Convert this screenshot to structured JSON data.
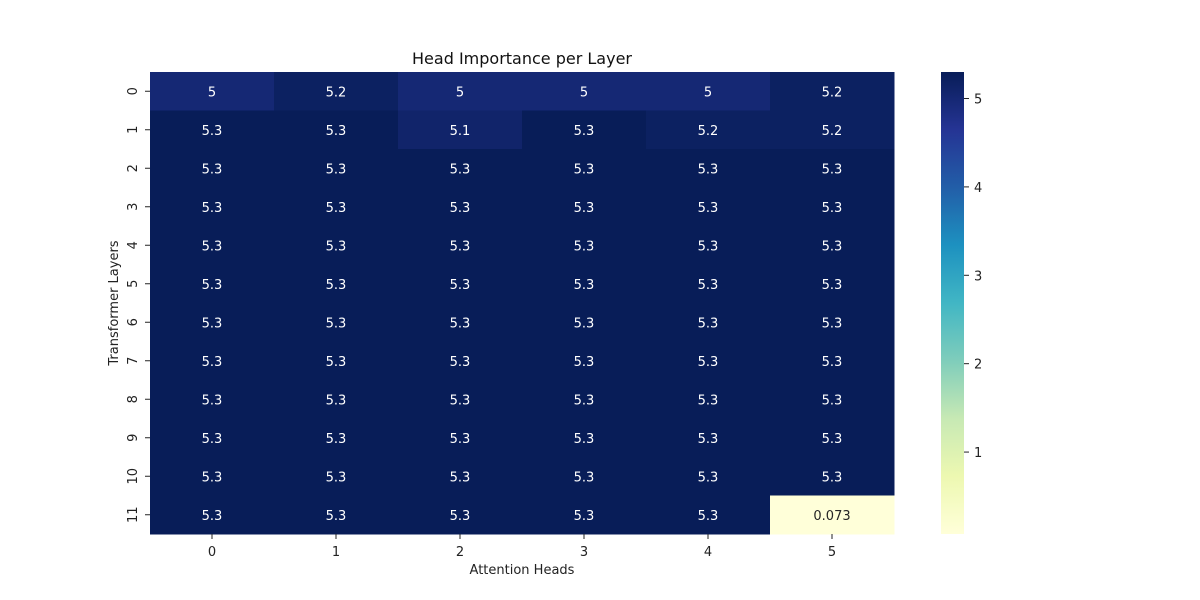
{
  "chart_data": {
    "type": "heatmap",
    "title": "Head Importance per Layer",
    "xlabel": "Attention Heads",
    "ylabel": "Transformer Layers",
    "x_categories": [
      "0",
      "1",
      "2",
      "3",
      "4",
      "5"
    ],
    "y_categories": [
      "0",
      "1",
      "2",
      "3",
      "4",
      "5",
      "6",
      "7",
      "8",
      "9",
      "10",
      "11"
    ],
    "values": [
      [
        5.0,
        5.2,
        5.0,
        5.0,
        5.0,
        5.2
      ],
      [
        5.3,
        5.3,
        5.1,
        5.3,
        5.2,
        5.2
      ],
      [
        5.3,
        5.3,
        5.3,
        5.3,
        5.3,
        5.3
      ],
      [
        5.3,
        5.3,
        5.3,
        5.3,
        5.3,
        5.3
      ],
      [
        5.3,
        5.3,
        5.3,
        5.3,
        5.3,
        5.3
      ],
      [
        5.3,
        5.3,
        5.3,
        5.3,
        5.3,
        5.3
      ],
      [
        5.3,
        5.3,
        5.3,
        5.3,
        5.3,
        5.3
      ],
      [
        5.3,
        5.3,
        5.3,
        5.3,
        5.3,
        5.3
      ],
      [
        5.3,
        5.3,
        5.3,
        5.3,
        5.3,
        5.3
      ],
      [
        5.3,
        5.3,
        5.3,
        5.3,
        5.3,
        5.3
      ],
      [
        5.3,
        5.3,
        5.3,
        5.3,
        5.3,
        5.3
      ],
      [
        5.3,
        5.3,
        5.3,
        5.3,
        5.3,
        0.073
      ]
    ],
    "annotations": [
      [
        "5",
        "5.2",
        "5",
        "5",
        "5",
        "5.2"
      ],
      [
        "5.3",
        "5.3",
        "5.1",
        "5.3",
        "5.2",
        "5.2"
      ],
      [
        "5.3",
        "5.3",
        "5.3",
        "5.3",
        "5.3",
        "5.3"
      ],
      [
        "5.3",
        "5.3",
        "5.3",
        "5.3",
        "5.3",
        "5.3"
      ],
      [
        "5.3",
        "5.3",
        "5.3",
        "5.3",
        "5.3",
        "5.3"
      ],
      [
        "5.3",
        "5.3",
        "5.3",
        "5.3",
        "5.3",
        "5.3"
      ],
      [
        "5.3",
        "5.3",
        "5.3",
        "5.3",
        "5.3",
        "5.3"
      ],
      [
        "5.3",
        "5.3",
        "5.3",
        "5.3",
        "5.3",
        "5.3"
      ],
      [
        "5.3",
        "5.3",
        "5.3",
        "5.3",
        "5.3",
        "5.3"
      ],
      [
        "5.3",
        "5.3",
        "5.3",
        "5.3",
        "5.3",
        "5.3"
      ],
      [
        "5.3",
        "5.3",
        "5.3",
        "5.3",
        "5.3",
        "5.3"
      ],
      [
        "5.3",
        "5.3",
        "5.3",
        "5.3",
        "5.3",
        "0.073"
      ]
    ],
    "colorbar": {
      "colormap": "YlGnBu",
      "vmin": 0.073,
      "vmax": 5.3,
      "ticks": [
        1,
        2,
        3,
        4,
        5
      ],
      "tick_labels": [
        "1",
        "2",
        "3",
        "4",
        "5"
      ]
    },
    "grid": false
  }
}
